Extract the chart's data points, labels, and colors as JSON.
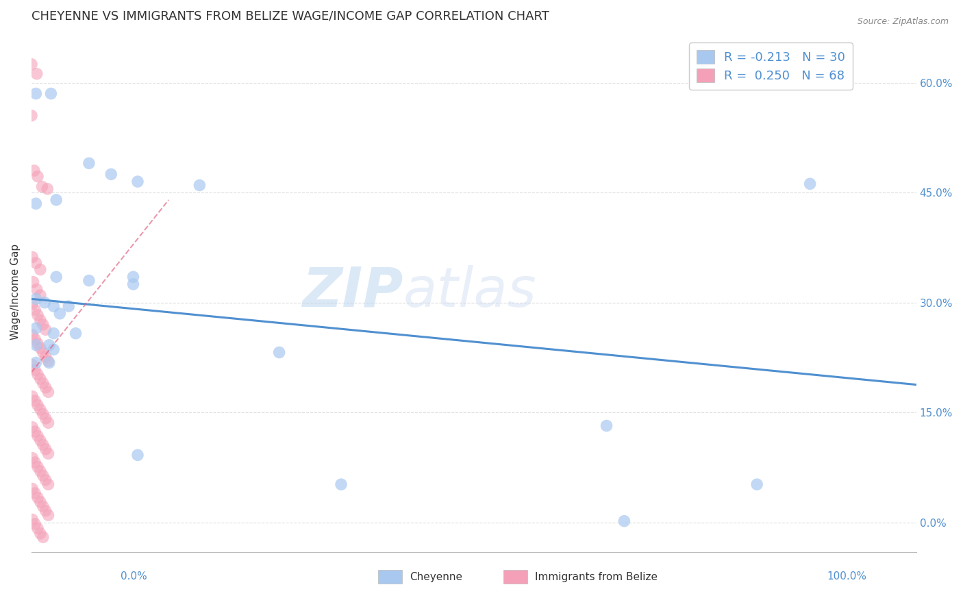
{
  "title": "CHEYENNE VS IMMIGRANTS FROM BELIZE WAGE/INCOME GAP CORRELATION CHART",
  "source": "Source: ZipAtlas.com",
  "xlabel_cheyenne": "Cheyenne",
  "xlabel_belize": "Immigrants from Belize",
  "ylabel": "Wage/Income Gap",
  "xlim": [
    0.0,
    1.0
  ],
  "ylim": [
    -0.04,
    0.67
  ],
  "yticks": [
    0.0,
    0.15,
    0.3,
    0.45,
    0.6
  ],
  "ytick_labels": [
    "0.0%",
    "15.0%",
    "30.0%",
    "45.0%",
    "60.0%"
  ],
  "xtick_left_label": "0.0%",
  "xtick_right_label": "100.0%",
  "blue_color": "#A8C8F0",
  "pink_color": "#F4A0B8",
  "trend_blue_color": "#5090D0",
  "trend_pink_color": "#E06080",
  "blue_scatter": [
    [
      0.005,
      0.585
    ],
    [
      0.022,
      0.585
    ],
    [
      0.065,
      0.49
    ],
    [
      0.09,
      0.475
    ],
    [
      0.12,
      0.465
    ],
    [
      0.19,
      0.46
    ],
    [
      0.005,
      0.435
    ],
    [
      0.028,
      0.44
    ],
    [
      0.028,
      0.335
    ],
    [
      0.065,
      0.33
    ],
    [
      0.115,
      0.335
    ],
    [
      0.115,
      0.325
    ],
    [
      0.005,
      0.305
    ],
    [
      0.015,
      0.3
    ],
    [
      0.025,
      0.295
    ],
    [
      0.032,
      0.285
    ],
    [
      0.042,
      0.295
    ],
    [
      0.005,
      0.265
    ],
    [
      0.025,
      0.258
    ],
    [
      0.05,
      0.258
    ],
    [
      0.005,
      0.242
    ],
    [
      0.02,
      0.242
    ],
    [
      0.025,
      0.236
    ],
    [
      0.28,
      0.232
    ],
    [
      0.005,
      0.218
    ],
    [
      0.02,
      0.218
    ],
    [
      0.12,
      0.092
    ],
    [
      0.65,
      0.132
    ],
    [
      0.35,
      0.052
    ],
    [
      0.82,
      0.052
    ],
    [
      0.67,
      0.002
    ],
    [
      0.88,
      0.462
    ]
  ],
  "pink_scatter": [
    [
      0.0,
      0.625
    ],
    [
      0.006,
      0.612
    ],
    [
      0.0,
      0.555
    ],
    [
      0.003,
      0.48
    ],
    [
      0.007,
      0.472
    ],
    [
      0.012,
      0.458
    ],
    [
      0.018,
      0.455
    ],
    [
      0.001,
      0.362
    ],
    [
      0.005,
      0.354
    ],
    [
      0.01,
      0.345
    ],
    [
      0.002,
      0.328
    ],
    [
      0.006,
      0.318
    ],
    [
      0.01,
      0.31
    ],
    [
      0.001,
      0.298
    ],
    [
      0.004,
      0.29
    ],
    [
      0.007,
      0.283
    ],
    [
      0.01,
      0.276
    ],
    [
      0.013,
      0.27
    ],
    [
      0.016,
      0.263
    ],
    [
      0.001,
      0.256
    ],
    [
      0.004,
      0.25
    ],
    [
      0.007,
      0.244
    ],
    [
      0.01,
      0.238
    ],
    [
      0.013,
      0.232
    ],
    [
      0.016,
      0.226
    ],
    [
      0.019,
      0.22
    ],
    [
      0.001,
      0.215
    ],
    [
      0.004,
      0.208
    ],
    [
      0.007,
      0.202
    ],
    [
      0.01,
      0.196
    ],
    [
      0.013,
      0.19
    ],
    [
      0.016,
      0.184
    ],
    [
      0.019,
      0.178
    ],
    [
      0.001,
      0.172
    ],
    [
      0.004,
      0.166
    ],
    [
      0.007,
      0.16
    ],
    [
      0.01,
      0.154
    ],
    [
      0.013,
      0.148
    ],
    [
      0.016,
      0.142
    ],
    [
      0.019,
      0.136
    ],
    [
      0.001,
      0.13
    ],
    [
      0.004,
      0.124
    ],
    [
      0.007,
      0.118
    ],
    [
      0.01,
      0.112
    ],
    [
      0.013,
      0.106
    ],
    [
      0.016,
      0.1
    ],
    [
      0.019,
      0.094
    ],
    [
      0.001,
      0.088
    ],
    [
      0.004,
      0.082
    ],
    [
      0.007,
      0.076
    ],
    [
      0.01,
      0.07
    ],
    [
      0.013,
      0.064
    ],
    [
      0.016,
      0.058
    ],
    [
      0.019,
      0.052
    ],
    [
      0.001,
      0.046
    ],
    [
      0.004,
      0.04
    ],
    [
      0.007,
      0.034
    ],
    [
      0.01,
      0.028
    ],
    [
      0.013,
      0.022
    ],
    [
      0.016,
      0.016
    ],
    [
      0.019,
      0.01
    ],
    [
      0.001,
      0.004
    ],
    [
      0.004,
      -0.002
    ],
    [
      0.007,
      -0.008
    ],
    [
      0.01,
      -0.015
    ],
    [
      0.013,
      -0.02
    ]
  ],
  "blue_trend_x0": 0.0,
  "blue_trend_x1": 1.0,
  "blue_trend_y0": 0.305,
  "blue_trend_y1": 0.188,
  "pink_trend_x0": 0.0,
  "pink_trend_x1": 0.155,
  "pink_trend_y0": 0.205,
  "pink_trend_y1": 0.44,
  "watermark_zip": "ZIP",
  "watermark_atlas": "atlas",
  "background_color": "#FFFFFF",
  "grid_color": "#DDDDDD",
  "title_color": "#333333",
  "source_color": "#888888",
  "axis_label_color": "#333333",
  "tick_color": "#5090D0",
  "legend_R_color": "#5090D0",
  "legend_N_color": "#5090D0"
}
